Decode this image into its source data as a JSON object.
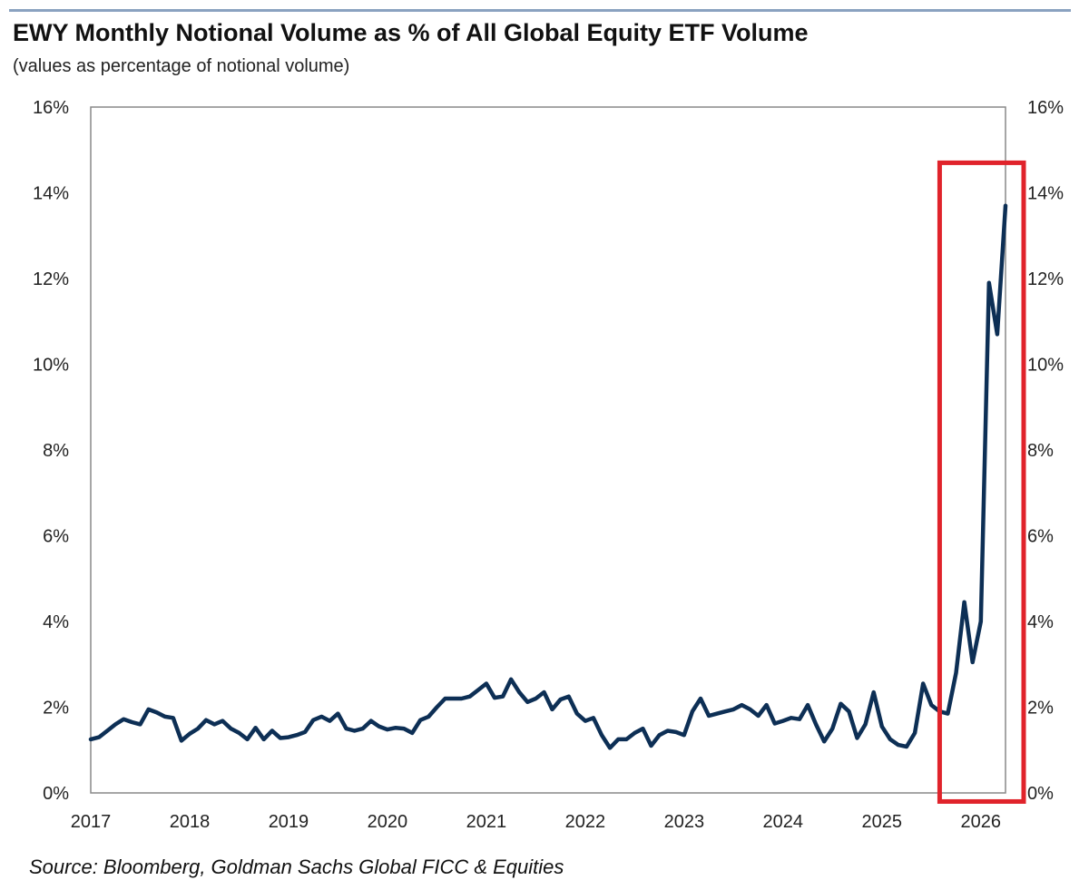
{
  "header": {
    "title": "EWY Monthly Notional Volume as % of All Global Equity ETF Volume",
    "subtitle": "(values as percentage of notional volume)"
  },
  "footer": {
    "source": "Source: Bloomberg, Goldman Sachs Global FICC & Equities"
  },
  "colors": {
    "line": "#0d2f55",
    "highlight_box": "#e0232b",
    "axis": "#888888",
    "top_rule": "#8aa2c0"
  },
  "chart_data": {
    "type": "line",
    "title": "EWY Monthly Notional Volume as % of All Global Equity ETF Volume",
    "subtitle": "(values as percentage of notional volume)",
    "xlabel": "",
    "ylabel": "",
    "x_tick_labels": [
      "2017",
      "2018",
      "2019",
      "2020",
      "2021",
      "2022",
      "2023",
      "2024",
      "2025",
      "2026"
    ],
    "y_tick_labels": [
      "0%",
      "2%",
      "4%",
      "6%",
      "8%",
      "10%",
      "12%",
      "14%",
      "16%"
    ],
    "ylim": [
      0,
      16
    ],
    "xlim": [
      "2017-01",
      "2026-04"
    ],
    "grid": false,
    "dual_y_axis": true,
    "highlight": {
      "from": "2025-09",
      "to": "2026-04",
      "style": "red rectangle"
    },
    "series": [
      {
        "x": [
          "2017-01",
          "2017-02",
          "2017-03",
          "2017-04",
          "2017-05",
          "2017-06",
          "2017-07",
          "2017-08",
          "2017-09",
          "2017-10",
          "2017-11",
          "2017-12",
          "2018-01",
          "2018-02",
          "2018-03",
          "2018-04",
          "2018-05",
          "2018-06",
          "2018-07",
          "2018-08",
          "2018-09",
          "2018-10",
          "2018-11",
          "2018-12",
          "2019-01",
          "2019-02",
          "2019-03",
          "2019-04",
          "2019-05",
          "2019-06",
          "2019-07",
          "2019-08",
          "2019-09",
          "2019-10",
          "2019-11",
          "2019-12",
          "2020-01",
          "2020-02",
          "2020-03",
          "2020-04",
          "2020-05",
          "2020-06",
          "2020-07",
          "2020-08",
          "2020-09",
          "2020-10",
          "2020-11",
          "2020-12",
          "2021-01",
          "2021-02",
          "2021-03",
          "2021-04",
          "2021-05",
          "2021-06",
          "2021-07",
          "2021-08",
          "2021-09",
          "2021-10",
          "2021-11",
          "2021-12",
          "2022-01",
          "2022-02",
          "2022-03",
          "2022-04",
          "2022-05",
          "2022-06",
          "2022-07",
          "2022-08",
          "2022-09",
          "2022-10",
          "2022-11",
          "2022-12",
          "2023-01",
          "2023-02",
          "2023-03",
          "2023-04",
          "2023-05",
          "2023-06",
          "2023-07",
          "2023-08",
          "2023-09",
          "2023-10",
          "2023-11",
          "2023-12",
          "2024-01",
          "2024-02",
          "2024-03",
          "2024-04",
          "2024-05",
          "2024-06",
          "2024-07",
          "2024-08",
          "2024-09",
          "2024-10",
          "2024-11",
          "2024-12",
          "2025-01",
          "2025-02",
          "2025-03",
          "2025-04",
          "2025-05",
          "2025-06",
          "2025-07",
          "2025-08",
          "2025-09",
          "2025-10",
          "2025-11",
          "2025-12",
          "2026-01",
          "2026-02",
          "2026-03",
          "2026-04"
        ],
        "values": [
          1.25,
          1.3,
          1.45,
          1.6,
          1.72,
          1.65,
          1.6,
          1.95,
          1.88,
          1.78,
          1.75,
          1.22,
          1.38,
          1.5,
          1.7,
          1.6,
          1.68,
          1.5,
          1.4,
          1.25,
          1.52,
          1.25,
          1.45,
          1.28,
          1.3,
          1.35,
          1.42,
          1.7,
          1.78,
          1.68,
          1.85,
          1.5,
          1.45,
          1.5,
          1.68,
          1.55,
          1.48,
          1.52,
          1.5,
          1.4,
          1.7,
          1.78,
          2.0,
          2.2,
          2.2,
          2.2,
          2.25,
          2.4,
          2.55,
          2.22,
          2.25,
          2.65,
          2.35,
          2.12,
          2.2,
          2.35,
          1.95,
          2.18,
          2.25,
          1.85,
          1.68,
          1.75,
          1.35,
          1.05,
          1.25,
          1.25,
          1.4,
          1.5,
          1.1,
          1.35,
          1.45,
          1.42,
          1.35,
          1.9,
          2.2,
          1.8,
          1.85,
          1.9,
          1.95,
          2.05,
          1.95,
          1.8,
          2.05,
          1.62,
          1.68,
          1.75,
          1.72,
          2.05,
          1.6,
          1.2,
          1.5,
          2.08,
          1.9,
          1.28,
          1.6,
          2.35,
          1.55,
          1.25,
          1.12,
          1.08,
          1.4,
          2.55,
          2.05,
          1.9,
          1.85,
          2.8,
          4.45,
          3.05,
          4.0,
          11.9,
          10.7,
          13.7
        ]
      }
    ]
  }
}
